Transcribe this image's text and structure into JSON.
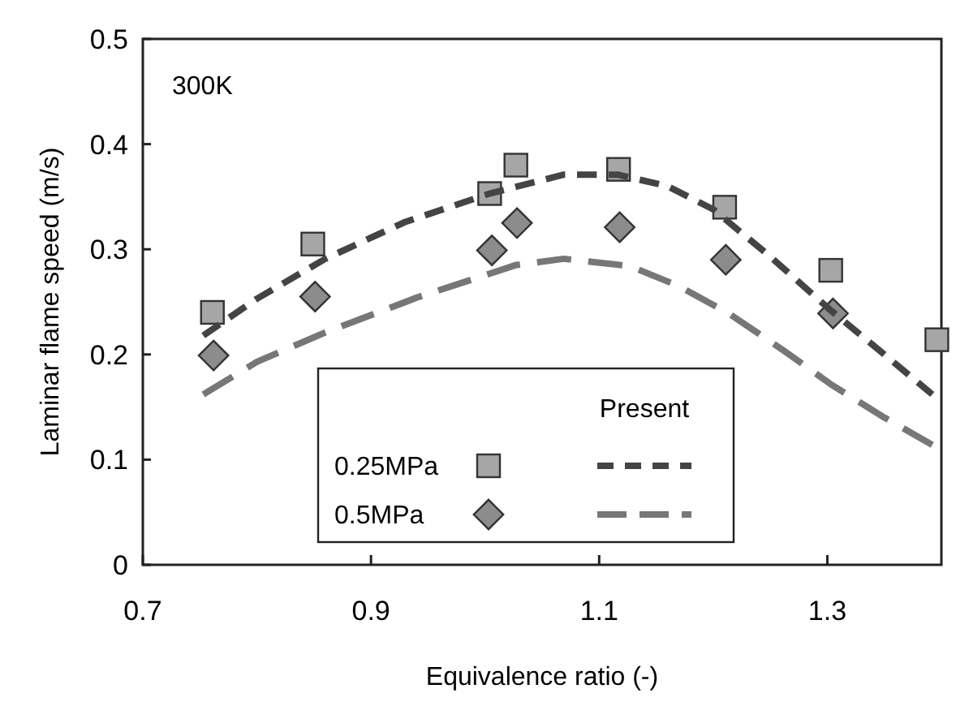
{
  "chart_data": {
    "type": "scatter",
    "xlabel": "Equivalence ratio (-)",
    "ylabel": "Laminar flame speed  (m/s)",
    "annotations": [
      "300K"
    ],
    "legend_title": "Present",
    "xlim": [
      0.7,
      1.4
    ],
    "xticks": [
      0.7,
      0.9,
      1.1,
      1.3
    ],
    "ylim": [
      0,
      0.5
    ],
    "yticks": [
      0,
      0.1,
      0.2,
      0.3,
      0.4,
      0.5
    ],
    "grid": false,
    "legend": "bottom",
    "series": [
      {
        "name": "0.25MPa",
        "marker": "square",
        "color": "#a6a6a6",
        "x": [
          0.761,
          0.849,
          1.004,
          1.027,
          1.117,
          1.21,
          1.303,
          1.396
        ],
        "values": [
          0.24,
          0.305,
          0.353,
          0.38,
          0.376,
          0.34,
          0.28,
          0.214
        ]
      },
      {
        "name": "0.5MPa",
        "marker": "diamond",
        "color": "#8c8c8c",
        "x": [
          0.762,
          0.851,
          1.006,
          1.028,
          1.118,
          1.211,
          1.305
        ],
        "values": [
          0.199,
          0.255,
          0.299,
          0.325,
          0.321,
          0.29,
          0.239
        ]
      },
      {
        "type": "line",
        "marker": "none",
        "line_style": "dashed",
        "color": "#444444",
        "x": [
          0.753,
          0.8,
          0.86,
          0.93,
          1.004,
          1.069,
          1.116,
          1.16,
          1.2,
          1.25,
          1.304,
          1.35,
          1.392
        ],
        "values": [
          0.218,
          0.253,
          0.291,
          0.326,
          0.353,
          0.371,
          0.371,
          0.36,
          0.338,
          0.293,
          0.241,
          0.2,
          0.162
        ]
      },
      {
        "type": "line",
        "marker": "none",
        "line_style": "dashed",
        "color": "#777777",
        "x": [
          0.753,
          0.8,
          0.86,
          0.94,
          1.027,
          1.069,
          1.127,
          1.17,
          1.215,
          1.26,
          1.304,
          1.35,
          1.392
        ],
        "values": [
          0.162,
          0.193,
          0.221,
          0.254,
          0.285,
          0.291,
          0.284,
          0.265,
          0.238,
          0.205,
          0.171,
          0.14,
          0.114
        ]
      }
    ]
  }
}
